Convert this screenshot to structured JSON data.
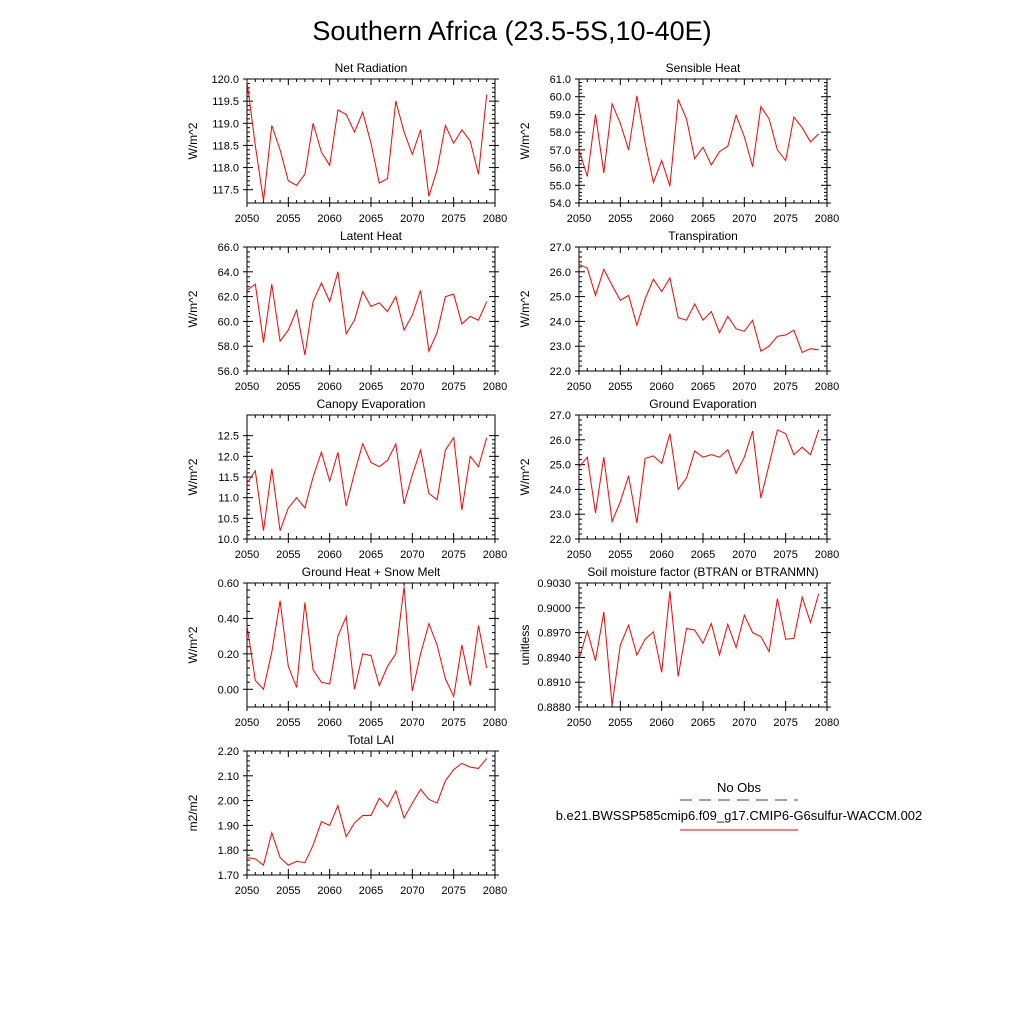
{
  "figure": {
    "title": "Southern Africa (23.5-5S,10-40E)"
  },
  "legend": {
    "obs_label": "No Obs",
    "model_label": "b.e21.BWSSP585cmip6.f09_g17.CMIP6-G6sulfur-WACCM.002",
    "obs_color": "#3333aa",
    "model_color": "#ff0000"
  },
  "chart_data": [
    {
      "type": "line",
      "title": "Net Radiation",
      "xlabel": "",
      "ylabel": "W/m^2",
      "xlim": [
        2050,
        2080
      ],
      "ylim": [
        117.2,
        120.0
      ],
      "xticks": [
        2050,
        2055,
        2060,
        2065,
        2070,
        2075,
        2080
      ],
      "yticks": [
        117.5,
        118.0,
        118.5,
        119.0,
        119.5,
        120.0
      ],
      "ytick_labels": [
        "117.5",
        "118.0",
        "118.5",
        "119.0",
        "119.5",
        "120.0"
      ],
      "x": [
        2050,
        2051,
        2052,
        2053,
        2054,
        2055,
        2056,
        2057,
        2058,
        2059,
        2060,
        2061,
        2062,
        2063,
        2064,
        2065,
        2066,
        2067,
        2068,
        2069,
        2070,
        2071,
        2072,
        2073,
        2074,
        2075,
        2076,
        2077,
        2078,
        2079
      ],
      "series": [
        {
          "color": "#ff0000",
          "values": [
            119.95,
            118.5,
            117.25,
            118.95,
            118.4,
            117.7,
            117.6,
            117.85,
            119.0,
            118.35,
            118.05,
            119.3,
            119.2,
            118.8,
            119.25,
            118.55,
            117.65,
            117.75,
            119.5,
            118.8,
            118.3,
            118.85,
            117.35,
            117.95,
            118.95,
            118.55,
            118.85,
            118.6,
            117.85,
            119.65
          ]
        }
      ]
    },
    {
      "type": "line",
      "title": "Sensible Heat",
      "xlabel": "",
      "ylabel": "W/m^2",
      "xlim": [
        2050,
        2080
      ],
      "ylim": [
        54.0,
        61.0
      ],
      "xticks": [
        2050,
        2055,
        2060,
        2065,
        2070,
        2075,
        2080
      ],
      "yticks": [
        54.0,
        55.0,
        56.0,
        57.0,
        58.0,
        59.0,
        60.0,
        61.0
      ],
      "ytick_labels": [
        "54.0",
        "55.0",
        "56.0",
        "57.0",
        "58.0",
        "59.0",
        "60.0",
        "61.0"
      ],
      "x": [
        2050,
        2051,
        2052,
        2053,
        2054,
        2055,
        2056,
        2057,
        2058,
        2059,
        2060,
        2061,
        2062,
        2063,
        2064,
        2065,
        2066,
        2067,
        2068,
        2069,
        2070,
        2071,
        2072,
        2073,
        2074,
        2075,
        2076,
        2077,
        2078,
        2079
      ],
      "series": [
        {
          "color": "#ff0000",
          "values": [
            57.0,
            55.5,
            59.0,
            55.7,
            59.6,
            58.5,
            57.0,
            60.05,
            57.4,
            55.15,
            56.4,
            54.95,
            59.85,
            58.75,
            56.5,
            57.15,
            56.15,
            56.9,
            57.2,
            58.95,
            57.75,
            56.05,
            59.45,
            58.75,
            57.0,
            56.4,
            58.85,
            58.25,
            57.45,
            57.9
          ]
        }
      ]
    },
    {
      "type": "line",
      "title": "Latent Heat",
      "xlabel": "",
      "ylabel": "W/m^2",
      "xlim": [
        2050,
        2080
      ],
      "ylim": [
        56.0,
        66.0
      ],
      "xticks": [
        2050,
        2055,
        2060,
        2065,
        2070,
        2075,
        2080
      ],
      "yticks": [
        56.0,
        58.0,
        60.0,
        62.0,
        64.0,
        66.0
      ],
      "ytick_labels": [
        "56.0",
        "58.0",
        "60.0",
        "62.0",
        "64.0",
        "66.0"
      ],
      "x": [
        2050,
        2051,
        2052,
        2053,
        2054,
        2055,
        2056,
        2057,
        2058,
        2059,
        2060,
        2061,
        2062,
        2063,
        2064,
        2065,
        2066,
        2067,
        2068,
        2069,
        2070,
        2071,
        2072,
        2073,
        2074,
        2075,
        2076,
        2077,
        2078,
        2079
      ],
      "series": [
        {
          "color": "#ff0000",
          "values": [
            62.5,
            63.0,
            58.3,
            63.0,
            58.4,
            59.3,
            60.9,
            57.3,
            61.6,
            63.1,
            61.6,
            64.0,
            59.0,
            60.1,
            62.4,
            61.2,
            61.5,
            60.8,
            62.0,
            59.3,
            60.5,
            62.5,
            57.6,
            59.1,
            62.0,
            62.2,
            59.8,
            60.4,
            60.1,
            61.6
          ]
        }
      ]
    },
    {
      "type": "line",
      "title": "Transpiration",
      "xlabel": "",
      "ylabel": "W/m^2",
      "xlim": [
        2050,
        2080
      ],
      "ylim": [
        22.0,
        27.0
      ],
      "xticks": [
        2050,
        2055,
        2060,
        2065,
        2070,
        2075,
        2080
      ],
      "yticks": [
        22.0,
        23.0,
        24.0,
        25.0,
        26.0,
        27.0
      ],
      "ytick_labels": [
        "22.0",
        "23.0",
        "24.0",
        "25.0",
        "26.0",
        "27.0"
      ],
      "x": [
        2050,
        2051,
        2052,
        2053,
        2054,
        2055,
        2056,
        2057,
        2058,
        2059,
        2060,
        2061,
        2062,
        2063,
        2064,
        2065,
        2066,
        2067,
        2068,
        2069,
        2070,
        2071,
        2072,
        2073,
        2074,
        2075,
        2076,
        2077,
        2078,
        2079
      ],
      "series": [
        {
          "color": "#ff0000",
          "values": [
            26.3,
            26.15,
            25.05,
            26.1,
            25.45,
            24.85,
            25.05,
            23.85,
            24.9,
            25.7,
            25.2,
            25.75,
            24.15,
            24.05,
            24.7,
            24.05,
            24.4,
            23.55,
            24.2,
            23.7,
            23.6,
            24.05,
            22.8,
            23.0,
            23.4,
            23.45,
            23.65,
            22.75,
            22.9,
            22.85
          ]
        }
      ]
    },
    {
      "type": "line",
      "title": "Canopy Evaporation",
      "xlabel": "",
      "ylabel": "W/m^2",
      "xlim": [
        2050,
        2080
      ],
      "ylim": [
        10.0,
        13.0
      ],
      "xticks": [
        2050,
        2055,
        2060,
        2065,
        2070,
        2075,
        2080
      ],
      "yticks": [
        10.0,
        10.5,
        11.0,
        11.5,
        12.0,
        12.5
      ],
      "ytick_labels": [
        "10.0",
        "10.5",
        "11.0",
        "11.5",
        "12.0",
        "12.5"
      ],
      "x": [
        2050,
        2051,
        2052,
        2053,
        2054,
        2055,
        2056,
        2057,
        2058,
        2059,
        2060,
        2061,
        2062,
        2063,
        2064,
        2065,
        2066,
        2067,
        2068,
        2069,
        2070,
        2071,
        2072,
        2073,
        2074,
        2075,
        2076,
        2077,
        2078,
        2079
      ],
      "series": [
        {
          "color": "#ff0000",
          "values": [
            11.35,
            11.65,
            10.2,
            11.7,
            10.2,
            10.75,
            11.0,
            10.75,
            11.5,
            12.1,
            11.4,
            12.1,
            10.8,
            11.6,
            12.3,
            11.85,
            11.75,
            11.9,
            12.3,
            10.85,
            11.55,
            12.15,
            11.1,
            10.95,
            12.15,
            12.45,
            10.7,
            12.0,
            11.75,
            12.45
          ]
        }
      ]
    },
    {
      "type": "line",
      "title": "Ground Evaporation",
      "xlabel": "",
      "ylabel": "W/m^2",
      "xlim": [
        2050,
        2080
      ],
      "ylim": [
        22.0,
        27.0
      ],
      "xticks": [
        2050,
        2055,
        2060,
        2065,
        2070,
        2075,
        2080
      ],
      "yticks": [
        22.0,
        23.0,
        24.0,
        25.0,
        26.0,
        27.0
      ],
      "ytick_labels": [
        "22.0",
        "23.0",
        "24.0",
        "25.0",
        "26.0",
        "27.0"
      ],
      "x": [
        2050,
        2051,
        2052,
        2053,
        2054,
        2055,
        2056,
        2057,
        2058,
        2059,
        2060,
        2061,
        2062,
        2063,
        2064,
        2065,
        2066,
        2067,
        2068,
        2069,
        2070,
        2071,
        2072,
        2073,
        2074,
        2075,
        2076,
        2077,
        2078,
        2079
      ],
      "series": [
        {
          "color": "#ff0000",
          "values": [
            24.9,
            25.3,
            23.05,
            25.3,
            22.7,
            23.5,
            24.55,
            22.65,
            25.25,
            25.35,
            25.05,
            26.25,
            24.0,
            24.45,
            25.55,
            25.3,
            25.4,
            25.3,
            25.6,
            24.65,
            25.3,
            26.35,
            23.65,
            25.0,
            26.4,
            26.25,
            25.4,
            25.7,
            25.4,
            26.4
          ]
        }
      ]
    },
    {
      "type": "line",
      "title": "Ground Heat + Snow Melt",
      "xlabel": "",
      "ylabel": "W/m^2",
      "xlim": [
        2050,
        2080
      ],
      "ylim": [
        -0.1,
        0.6
      ],
      "xticks": [
        2050,
        2055,
        2060,
        2065,
        2070,
        2075,
        2080
      ],
      "yticks": [
        0.0,
        0.2,
        0.4,
        0.6
      ],
      "ytick_labels": [
        "0.00",
        "0.20",
        "0.40",
        "0.60"
      ],
      "x": [
        2050,
        2051,
        2052,
        2053,
        2054,
        2055,
        2056,
        2057,
        2058,
        2059,
        2060,
        2061,
        2062,
        2063,
        2064,
        2065,
        2066,
        2067,
        2068,
        2069,
        2070,
        2071,
        2072,
        2073,
        2074,
        2075,
        2076,
        2077,
        2078,
        2079
      ],
      "series": [
        {
          "color": "#ff0000",
          "values": [
            0.36,
            0.05,
            0.0,
            0.21,
            0.5,
            0.13,
            0.01,
            0.49,
            0.11,
            0.04,
            0.03,
            0.3,
            0.41,
            0.0,
            0.2,
            0.19,
            0.02,
            0.13,
            0.2,
            0.58,
            -0.01,
            0.2,
            0.37,
            0.25,
            0.06,
            -0.04,
            0.25,
            0.02,
            0.36,
            0.12
          ]
        }
      ]
    },
    {
      "type": "line",
      "title": "Soil moisture factor (BTRAN or BTRANMN)",
      "xlabel": "",
      "ylabel": "unitless",
      "xlim": [
        2050,
        2080
      ],
      "ylim": [
        0.888,
        0.903
      ],
      "xticks": [
        2050,
        2055,
        2060,
        2065,
        2070,
        2075,
        2080
      ],
      "yticks": [
        0.888,
        0.891,
        0.894,
        0.897,
        0.9,
        0.903
      ],
      "ytick_labels": [
        "0.8880",
        "0.8910",
        "0.8940",
        "0.8970",
        "0.9000",
        "0.9030"
      ],
      "x": [
        2050,
        2051,
        2052,
        2053,
        2054,
        2055,
        2056,
        2057,
        2058,
        2059,
        2060,
        2061,
        2062,
        2063,
        2064,
        2065,
        2066,
        2067,
        2068,
        2069,
        2070,
        2071,
        2072,
        2073,
        2074,
        2075,
        2076,
        2077,
        2078,
        2079
      ],
      "series": [
        {
          "color": "#ff0000",
          "values": [
            0.8938,
            0.8972,
            0.8936,
            0.8995,
            0.8882,
            0.8955,
            0.8979,
            0.8943,
            0.8962,
            0.8971,
            0.8922,
            0.902,
            0.8917,
            0.8975,
            0.8973,
            0.8957,
            0.8981,
            0.8943,
            0.898,
            0.8952,
            0.8991,
            0.897,
            0.8965,
            0.8947,
            0.9011,
            0.8962,
            0.8963,
            0.9013,
            0.8982,
            0.9017
          ]
        }
      ]
    },
    {
      "type": "line",
      "title": "Total LAI",
      "xlabel": "",
      "ylabel": "m2/m2",
      "xlim": [
        2050,
        2080
      ],
      "ylim": [
        1.7,
        2.2
      ],
      "xticks": [
        2050,
        2055,
        2060,
        2065,
        2070,
        2075,
        2080
      ],
      "yticks": [
        1.7,
        1.8,
        1.9,
        2.0,
        2.1,
        2.2
      ],
      "ytick_labels": [
        "1.70",
        "1.80",
        "1.90",
        "2.00",
        "2.10",
        "2.20"
      ],
      "x": [
        2050,
        2051,
        2052,
        2053,
        2054,
        2055,
        2056,
        2057,
        2058,
        2059,
        2060,
        2061,
        2062,
        2063,
        2064,
        2065,
        2066,
        2067,
        2068,
        2069,
        2070,
        2071,
        2072,
        2073,
        2074,
        2075,
        2076,
        2077,
        2078,
        2079
      ],
      "series": [
        {
          "color": "#ff0000",
          "values": [
            1.77,
            1.765,
            1.74,
            1.87,
            1.77,
            1.74,
            1.755,
            1.75,
            1.82,
            1.915,
            1.9,
            1.98,
            1.855,
            1.91,
            1.94,
            1.94,
            2.01,
            1.975,
            2.04,
            1.93,
            1.99,
            2.045,
            2.005,
            1.99,
            2.08,
            2.125,
            2.15,
            2.135,
            2.13,
            2.17
          ]
        }
      ]
    }
  ]
}
